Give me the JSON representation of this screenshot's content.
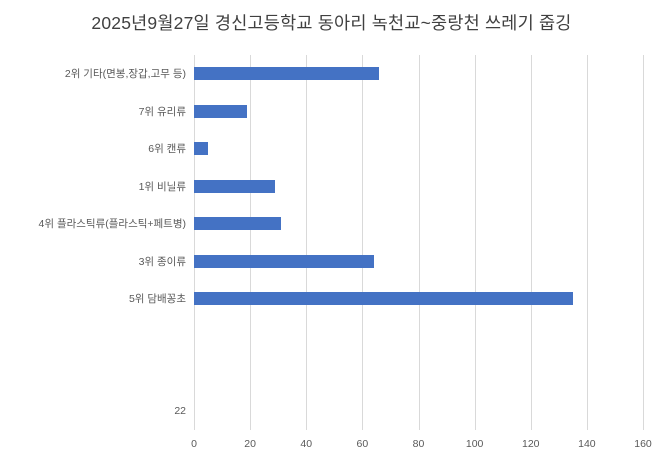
{
  "title": "2025년9월27일 경신고등학교 동아리 녹천교~중랑천 쓰레기 줍깅",
  "chart_data": {
    "type": "bar",
    "orientation": "horizontal",
    "title": "2025년9월27일 경신고등학교 동아리 녹천교~중랑천 쓰레기 줍깅",
    "categories": [
      "2위 기타(면봉,장갑,고무 등)",
      "7위 유리류",
      "6위 캔류",
      "1위 비닐류",
      "4위 플라스틱류(플라스틱+페트병)",
      "3위 종이류",
      "5위 담배꽁초",
      "",
      "",
      "22"
    ],
    "values": [
      66,
      19,
      5,
      29,
      31,
      64,
      135,
      null,
      null,
      null
    ],
    "xlim": [
      0,
      160
    ],
    "xticks": [
      0,
      20,
      40,
      60,
      80,
      100,
      120,
      140,
      160
    ],
    "grid": true,
    "legend": false,
    "bar_color": "#4472c4",
    "gridline_color": "#d9d9d9",
    "label_color": "#595959",
    "title_color": "#404040"
  }
}
